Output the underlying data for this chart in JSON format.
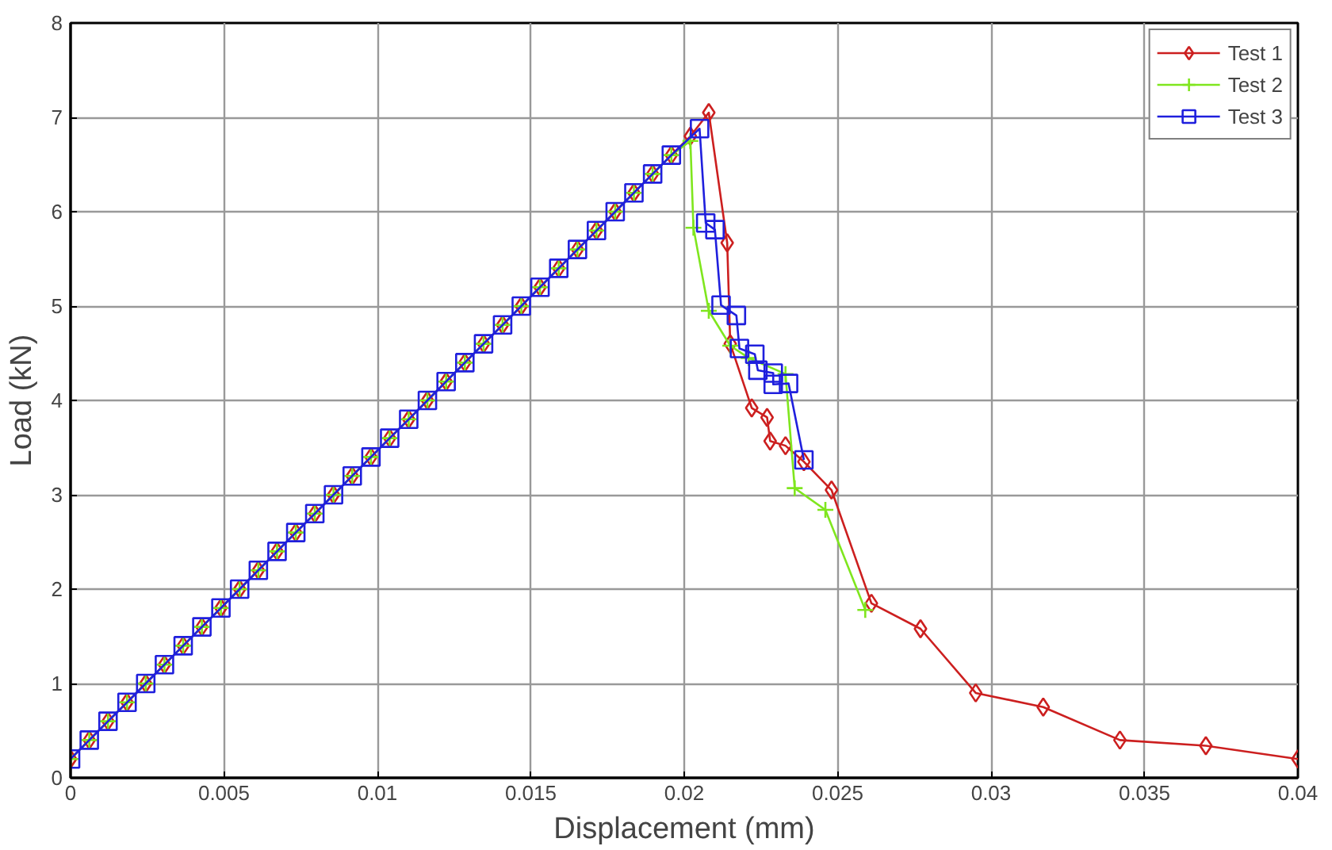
{
  "chart_data": {
    "type": "line",
    "xlabel": "Displacement (mm)",
    "ylabel": "Load (kN)",
    "xlim": [
      0,
      0.04
    ],
    "ylim": [
      0,
      8
    ],
    "xticks": [
      0,
      0.005,
      0.01,
      0.015,
      0.02,
      0.025,
      0.03,
      0.035,
      0.04
    ],
    "yticks": [
      0,
      1,
      2,
      3,
      4,
      5,
      6,
      7,
      8
    ],
    "grid": true,
    "legend": "top right",
    "series": [
      {
        "name": "Test 1",
        "color": "#cc1f1f",
        "marker": "diamond",
        "x": [
          0,
          0.00061,
          0.00122,
          0.00184,
          0.00245,
          0.00306,
          0.00367,
          0.00428,
          0.0049,
          0.00551,
          0.00612,
          0.00673,
          0.00734,
          0.00796,
          0.00857,
          0.00918,
          0.00979,
          0.0104,
          0.01102,
          0.01163,
          0.01224,
          0.01285,
          0.01346,
          0.01408,
          0.01469,
          0.0153,
          0.01591,
          0.01652,
          0.01714,
          0.01775,
          0.01836,
          0.01897,
          0.01958,
          0.0202,
          0.0208,
          0.0214,
          0.0215,
          0.0222,
          0.0227,
          0.0228,
          0.0233,
          0.0239,
          0.0248,
          0.0261,
          0.0277,
          0.0295,
          0.0317,
          0.0342,
          0.037,
          0.04
        ],
        "values": [
          0.2,
          0.4,
          0.6,
          0.8,
          1.0,
          1.2,
          1.4,
          1.6,
          1.8,
          2.0,
          2.2,
          2.4,
          2.6,
          2.8,
          3.0,
          3.2,
          3.4,
          3.6,
          3.8,
          4.0,
          4.2,
          4.4,
          4.6,
          4.8,
          5.0,
          5.2,
          5.4,
          5.6,
          5.8,
          6.0,
          6.2,
          6.4,
          6.6,
          6.8,
          7.05,
          5.67,
          4.6,
          3.92,
          3.82,
          3.57,
          3.52,
          3.35,
          3.05,
          1.85,
          1.58,
          0.9,
          0.75,
          0.4,
          0.34,
          0.2
        ]
      },
      {
        "name": "Test 2",
        "color": "#7fe61e",
        "marker": "cross",
        "x": [
          0,
          0.00061,
          0.00122,
          0.00184,
          0.00245,
          0.00306,
          0.00367,
          0.00428,
          0.0049,
          0.00551,
          0.00612,
          0.00673,
          0.00734,
          0.00796,
          0.00857,
          0.00918,
          0.00979,
          0.0104,
          0.01102,
          0.01163,
          0.01224,
          0.01285,
          0.01346,
          0.01408,
          0.01469,
          0.0153,
          0.01591,
          0.01652,
          0.01714,
          0.01775,
          0.01836,
          0.01897,
          0.01958,
          0.0202,
          0.0203,
          0.0208,
          0.0215,
          0.0221,
          0.0233,
          0.0236,
          0.0246,
          0.0259
        ],
        "values": [
          0.2,
          0.4,
          0.6,
          0.8,
          1.0,
          1.2,
          1.4,
          1.6,
          1.8,
          2.0,
          2.2,
          2.4,
          2.6,
          2.8,
          3.0,
          3.2,
          3.4,
          3.6,
          3.8,
          4.0,
          4.2,
          4.4,
          4.6,
          4.8,
          5.0,
          5.2,
          5.4,
          5.6,
          5.8,
          6.0,
          6.2,
          6.4,
          6.6,
          6.75,
          5.83,
          4.95,
          4.58,
          4.45,
          4.28,
          3.07,
          2.84,
          1.78
        ]
      },
      {
        "name": "Test 3",
        "color": "#1f1fdd",
        "marker": "square",
        "x": [
          0,
          0.00061,
          0.00122,
          0.00184,
          0.00245,
          0.00306,
          0.00367,
          0.00428,
          0.0049,
          0.00551,
          0.00612,
          0.00673,
          0.00734,
          0.00796,
          0.00857,
          0.00918,
          0.00979,
          0.0104,
          0.01102,
          0.01163,
          0.01224,
          0.01285,
          0.01346,
          0.01408,
          0.01469,
          0.0153,
          0.01591,
          0.01652,
          0.01714,
          0.01775,
          0.01836,
          0.01897,
          0.01958,
          0.0205,
          0.0207,
          0.021,
          0.0212,
          0.0217,
          0.0218,
          0.0223,
          0.0224,
          0.0229,
          0.0229,
          0.0234,
          0.0239
        ],
        "values": [
          0.2,
          0.4,
          0.6,
          0.8,
          1.0,
          1.2,
          1.4,
          1.6,
          1.8,
          2.0,
          2.2,
          2.4,
          2.6,
          2.8,
          3.0,
          3.2,
          3.4,
          3.6,
          3.8,
          4.0,
          4.2,
          4.4,
          4.6,
          4.8,
          5.0,
          5.2,
          5.4,
          5.6,
          5.8,
          6.0,
          6.2,
          6.4,
          6.6,
          6.88,
          5.88,
          5.81,
          5.01,
          4.9,
          4.55,
          4.49,
          4.32,
          4.29,
          4.17,
          4.18,
          3.37
        ]
      }
    ]
  }
}
